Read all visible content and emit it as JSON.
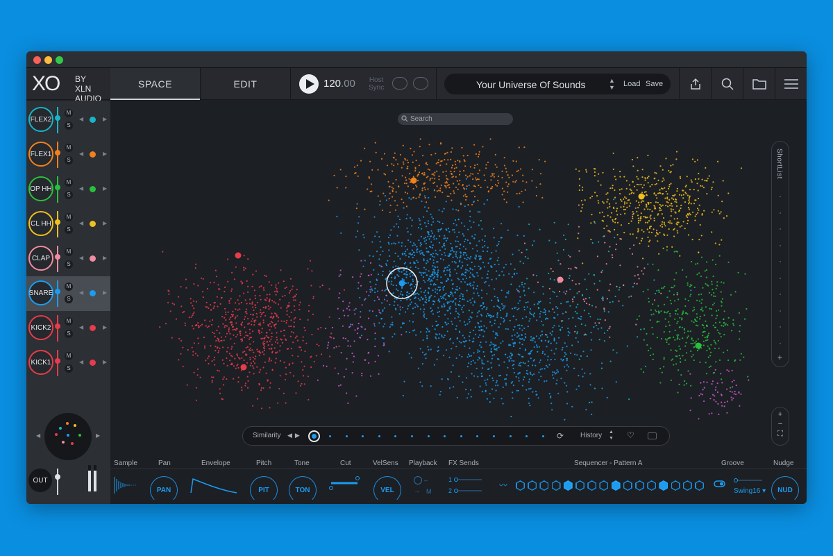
{
  "header": {
    "logo_main": "XO",
    "logo_by": "BY",
    "logo_xln": "XLN",
    "logo_audio": "AUDIO",
    "tabs": [
      {
        "label": "SPACE",
        "active": true
      },
      {
        "label": "EDIT",
        "active": false
      }
    ],
    "bpm_int": "120",
    "bpm_dec": ".00",
    "host_line1": "Host",
    "host_line2": "Sync",
    "preset_name": "Your Universe Of Sounds",
    "load_label": "Load",
    "save_label": "Save"
  },
  "tracks": [
    {
      "name": "FLEX2",
      "color": "#18b4c8",
      "selected": false
    },
    {
      "name": "FLEX1",
      "color": "#f0821e",
      "selected": false
    },
    {
      "name": "OP HH",
      "color": "#28c03c",
      "selected": false
    },
    {
      "name": "CL HH",
      "color": "#f0c01e",
      "selected": false
    },
    {
      "name": "CLAP",
      "color": "#f08ca0",
      "selected": false
    },
    {
      "name": "SNARE",
      "color": "#1b9cf0",
      "selected": true
    },
    {
      "name": "KICK2",
      "color": "#e63c4b",
      "selected": false
    },
    {
      "name": "KICK1",
      "color": "#e63c4b",
      "selected": false
    }
  ],
  "mute_label": "M",
  "solo_label": "S",
  "out_label": "OUT",
  "space": {
    "search_placeholder": "Search",
    "shortlist_label": "ShortList",
    "shortlist_add": "+",
    "zoom_in": "+",
    "zoom_out": "−",
    "zoom_fit": "⛶",
    "similarity_label": "Similarity",
    "history_label": "History"
  },
  "bottom": {
    "labels": [
      "Sample",
      "Pan",
      "Envelope",
      "Pitch",
      "Tone",
      "Cut",
      "VelSens",
      "Playback",
      "FX Sends",
      "Sequencer - Pattern A",
      "Groove",
      "Nudge"
    ],
    "knobs": [
      "PAN",
      "PIT",
      "TON",
      "VEL",
      "NUD"
    ],
    "playback_m": "M",
    "fx_send_1": "1",
    "fx_send_2": "2",
    "swing": "Swing16 ▾"
  },
  "colors": {
    "accent": "#1b9cf0",
    "background": "#0a8ee0",
    "panel": "#1c1f24"
  }
}
